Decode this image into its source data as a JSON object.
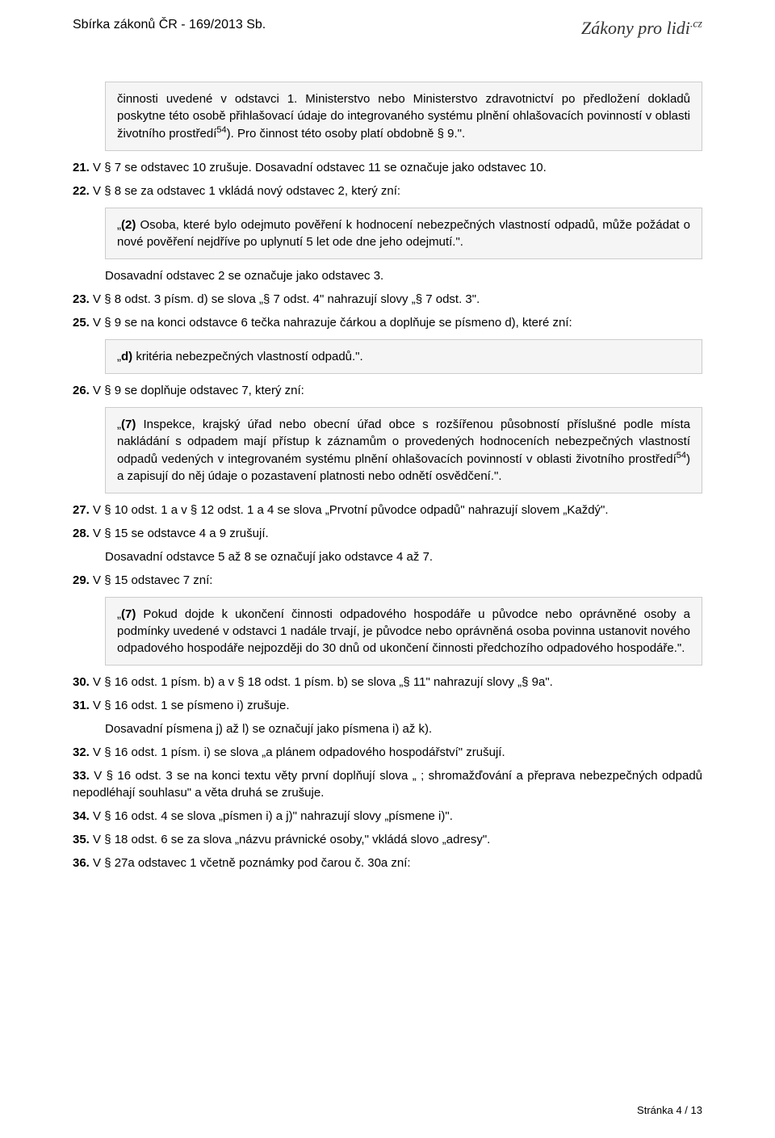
{
  "header": {
    "left": "Sbírka zákonů ČR - 169/2013 Sb.",
    "right_main": "Zákony pro lidi",
    "right_sup": ".cz"
  },
  "blocks": [
    {
      "type": "quote",
      "html": "činnosti uvedené v odstavci 1. Ministerstvo nebo Ministerstvo zdravotnictví po předložení dokladů poskytne této osobě přihlašovací údaje do integrovaného systému plnění ohlašovacích povinností v oblasti životního prostředí<span class=\"sup\">54</span>). Pro činnost této osoby platí obdobně § 9.\"."
    },
    {
      "type": "para",
      "html": "<span class=\"bold\">21.</span> V § 7 se odstavec 10 zrušuje. Dosavadní odstavec 11 se označuje jako odstavec 10."
    },
    {
      "type": "para",
      "html": "<span class=\"bold\">22.</span> V § 8 se za odstavec 1 vkládá nový odstavec 2, který zní:"
    },
    {
      "type": "quote",
      "html": "„<span class=\"bold\">(2)</span> Osoba, které bylo odejmuto pověření k hodnocení nebezpečných vlastností odpadů, může požádat o nové pověření nejdříve po uplynutí 5 let ode dne jeho odejmutí.\"."
    },
    {
      "type": "para-indent",
      "html": "Dosavadní odstavec 2 se označuje jako odstavec 3."
    },
    {
      "type": "para",
      "html": "<span class=\"bold\">23.</span> V § 8 odst. 3 písm. d) se slova „§ 7 odst. 4\" nahrazují slovy „§ 7 odst. 3\"."
    },
    {
      "type": "para",
      "html": "<span class=\"bold\">25.</span> V § 9 se na konci odstavce 6 tečka nahrazuje čárkou a doplňuje se písmeno d), které zní:"
    },
    {
      "type": "quote",
      "html": "„<span class=\"bold\">d)</span> kritéria nebezpečných vlastností odpadů.\"."
    },
    {
      "type": "para",
      "html": "<span class=\"bold\">26.</span> V § 9 se doplňuje odstavec 7, který zní:"
    },
    {
      "type": "quote",
      "html": "„<span class=\"bold\">(7)</span> Inspekce, krajský úřad nebo obecní úřad obce s rozšířenou působností příslušné podle místa nakládání s odpadem mají přístup k záznamům o provedených hodnoceních nebezpečných vlastností odpadů vedených v integrovaném systému plnění ohlašovacích povinností v oblasti životního prostředí<span class=\"sup\">54</span>) a zapisují do něj údaje o pozastavení platnosti nebo odnětí osvědčení.\"."
    },
    {
      "type": "para",
      "html": "<span class=\"bold\">27.</span> V § 10 odst. 1 a v § 12 odst. 1 a 4 se slova „Prvotní původce odpadů\" nahrazují slovem „Každý\"."
    },
    {
      "type": "para",
      "html": "<span class=\"bold\">28.</span> V § 15 se odstavce 4 a 9 zrušují."
    },
    {
      "type": "para-indent",
      "html": "Dosavadní odstavce 5 až 8 se označují jako odstavce 4 až 7."
    },
    {
      "type": "para",
      "html": "<span class=\"bold\">29.</span> V § 15 odstavec 7 zní:"
    },
    {
      "type": "quote",
      "html": "„<span class=\"bold\">(7)</span> Pokud dojde k ukončení činnosti odpadového hospodáře u původce nebo oprávněné osoby a podmínky uvedené v odstavci 1 nadále trvají, je původce nebo oprávněná osoba povinna ustanovit nového odpadového hospodáře nejpozději do 30 dnů od ukončení činnosti předchozího odpadového hospodáře.\"."
    },
    {
      "type": "para",
      "html": "<span class=\"bold\">30.</span> V § 16 odst. 1 písm. b) a v § 18 odst. 1 písm. b) se slova „§ 11\" nahrazují slovy „§ 9a\"."
    },
    {
      "type": "para",
      "html": "<span class=\"bold\">31.</span> V § 16 odst. 1 se písmeno i) zrušuje."
    },
    {
      "type": "para-indent",
      "html": "Dosavadní písmena j) až l) se označují jako písmena i) až k)."
    },
    {
      "type": "para",
      "html": "<span class=\"bold\">32.</span> V § 16 odst. 1 písm. i) se slova „a plánem odpadového hospodářství\" zrušují."
    },
    {
      "type": "para",
      "html": "<span class=\"bold\">33.</span> V § 16 odst. 3 se na konci textu věty první doplňují slova „ ; shromažďování a přeprava nebezpečných odpadů nepodléhají souhlasu\" a věta druhá se zrušuje."
    },
    {
      "type": "para",
      "html": "<span class=\"bold\">34.</span> V § 16 odst. 4 se slova „písmen i) a j)\" nahrazují slovy „písmene i)\"."
    },
    {
      "type": "para",
      "html": "<span class=\"bold\">35.</span> V § 18 odst. 6 se za slova „názvu právnické osoby,\" vkládá slovo „adresy\"."
    },
    {
      "type": "para",
      "html": "<span class=\"bold\">36.</span> V § 27a odstavec 1 včetně poznámky pod čarou č. 30a zní:"
    }
  ],
  "footer": "Stránka 4 / 13",
  "colors": {
    "background": "#ffffff",
    "text": "#000000",
    "quote_bg": "#f5f5f5",
    "quote_border": "#cccccc"
  }
}
